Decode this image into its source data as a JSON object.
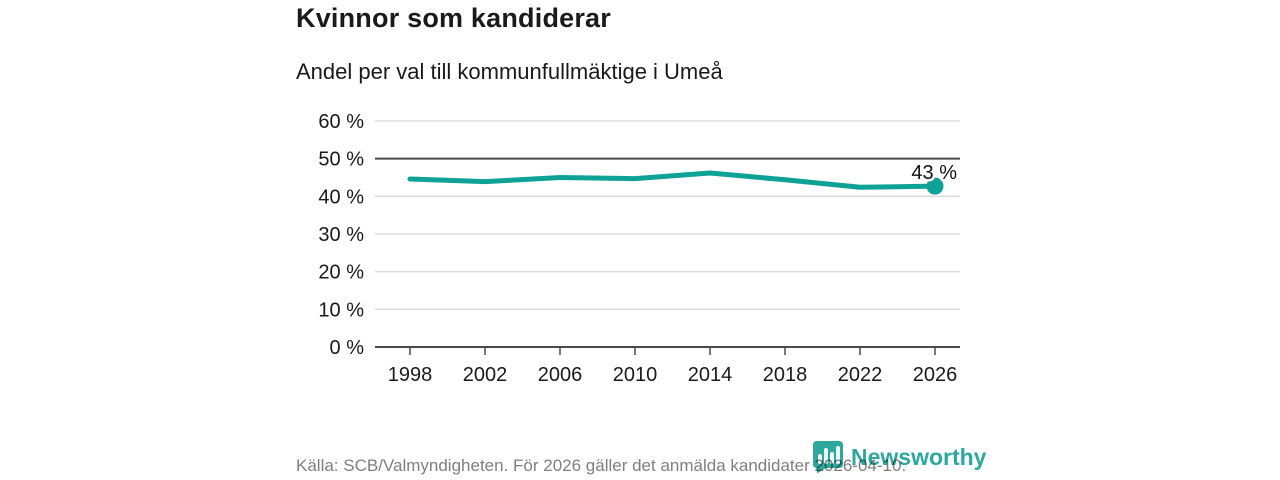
{
  "header": {
    "title": "Kvinnor som kandiderar",
    "subtitle": "Andel per val till kommunfullmäktige i Umeå"
  },
  "chart_data": {
    "type": "line",
    "title": "Kvinnor som kandiderar",
    "subtitle": "Andel per val till kommunfullmäktige i Umeå",
    "x": [
      1998,
      2002,
      2006,
      2010,
      2014,
      2018,
      2022,
      2026
    ],
    "x_tick_labels": [
      "1998",
      "2002",
      "2006",
      "2010",
      "2014",
      "2018",
      "2022",
      "2026"
    ],
    "values": [
      44.6,
      43.9,
      45.0,
      44.7,
      46.2,
      44.4,
      42.4,
      42.7
    ],
    "point_label": "43 %",
    "ylim": [
      0,
      60
    ],
    "y_tick_labels": [
      "0 %",
      "10 %",
      "20 %",
      "30 %",
      "40 %",
      "50 %",
      "60 %"
    ],
    "grid": "horizontal",
    "emphasized_gridline": "50 %",
    "legend": "none"
  },
  "footer": {
    "source": "Källa: SCB/Valmyndigheten. För 2026 gäller det anmälda kandidater 2026-04-10.",
    "logo_text": "Newsworthy"
  },
  "colors": {
    "line": "#0ea297",
    "logo": "#2ea79c",
    "grid_light": "#d9d9d9",
    "grid_dark": "#4a4a4a",
    "text": "#1a1a1a",
    "footer_text": "#7f7f7f"
  }
}
